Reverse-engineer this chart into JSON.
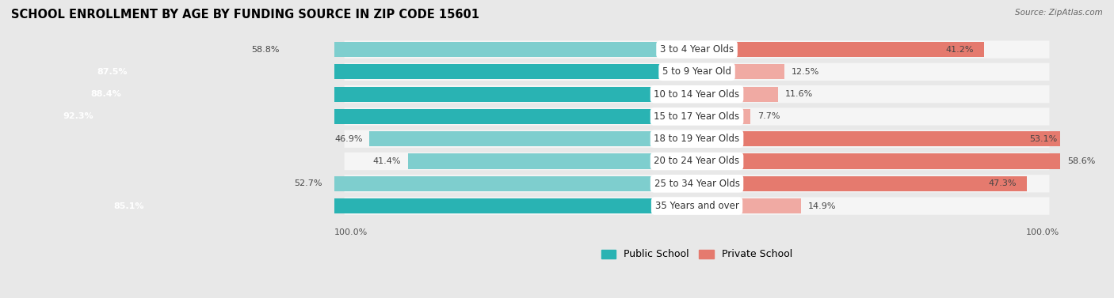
{
  "title": "SCHOOL ENROLLMENT BY AGE BY FUNDING SOURCE IN ZIP CODE 15601",
  "source": "Source: ZipAtlas.com",
  "categories": [
    "3 to 4 Year Olds",
    "5 to 9 Year Old",
    "10 to 14 Year Olds",
    "15 to 17 Year Olds",
    "18 to 19 Year Olds",
    "20 to 24 Year Olds",
    "25 to 34 Year Olds",
    "35 Years and over"
  ],
  "public_values": [
    58.8,
    87.5,
    88.4,
    92.3,
    46.9,
    41.4,
    52.7,
    85.1
  ],
  "private_values": [
    41.2,
    12.5,
    11.6,
    7.7,
    53.1,
    58.6,
    47.3,
    14.9
  ],
  "public_color_dark": "#29b3b3",
  "public_color_light": "#7ecece",
  "private_color_dark": "#e57a6e",
  "private_color_light": "#f0aaa3",
  "background_color": "#e8e8e8",
  "bar_bg_color": "#f5f5f5",
  "bar_row_bg": "#dcdcdc",
  "label_pill_color": "#ffffff",
  "bar_height": 0.68,
  "title_fontsize": 10.5,
  "label_fontsize": 8.0,
  "cat_label_fontsize": 8.5,
  "legend_fontsize": 9,
  "axis_label_fontsize": 8.0
}
